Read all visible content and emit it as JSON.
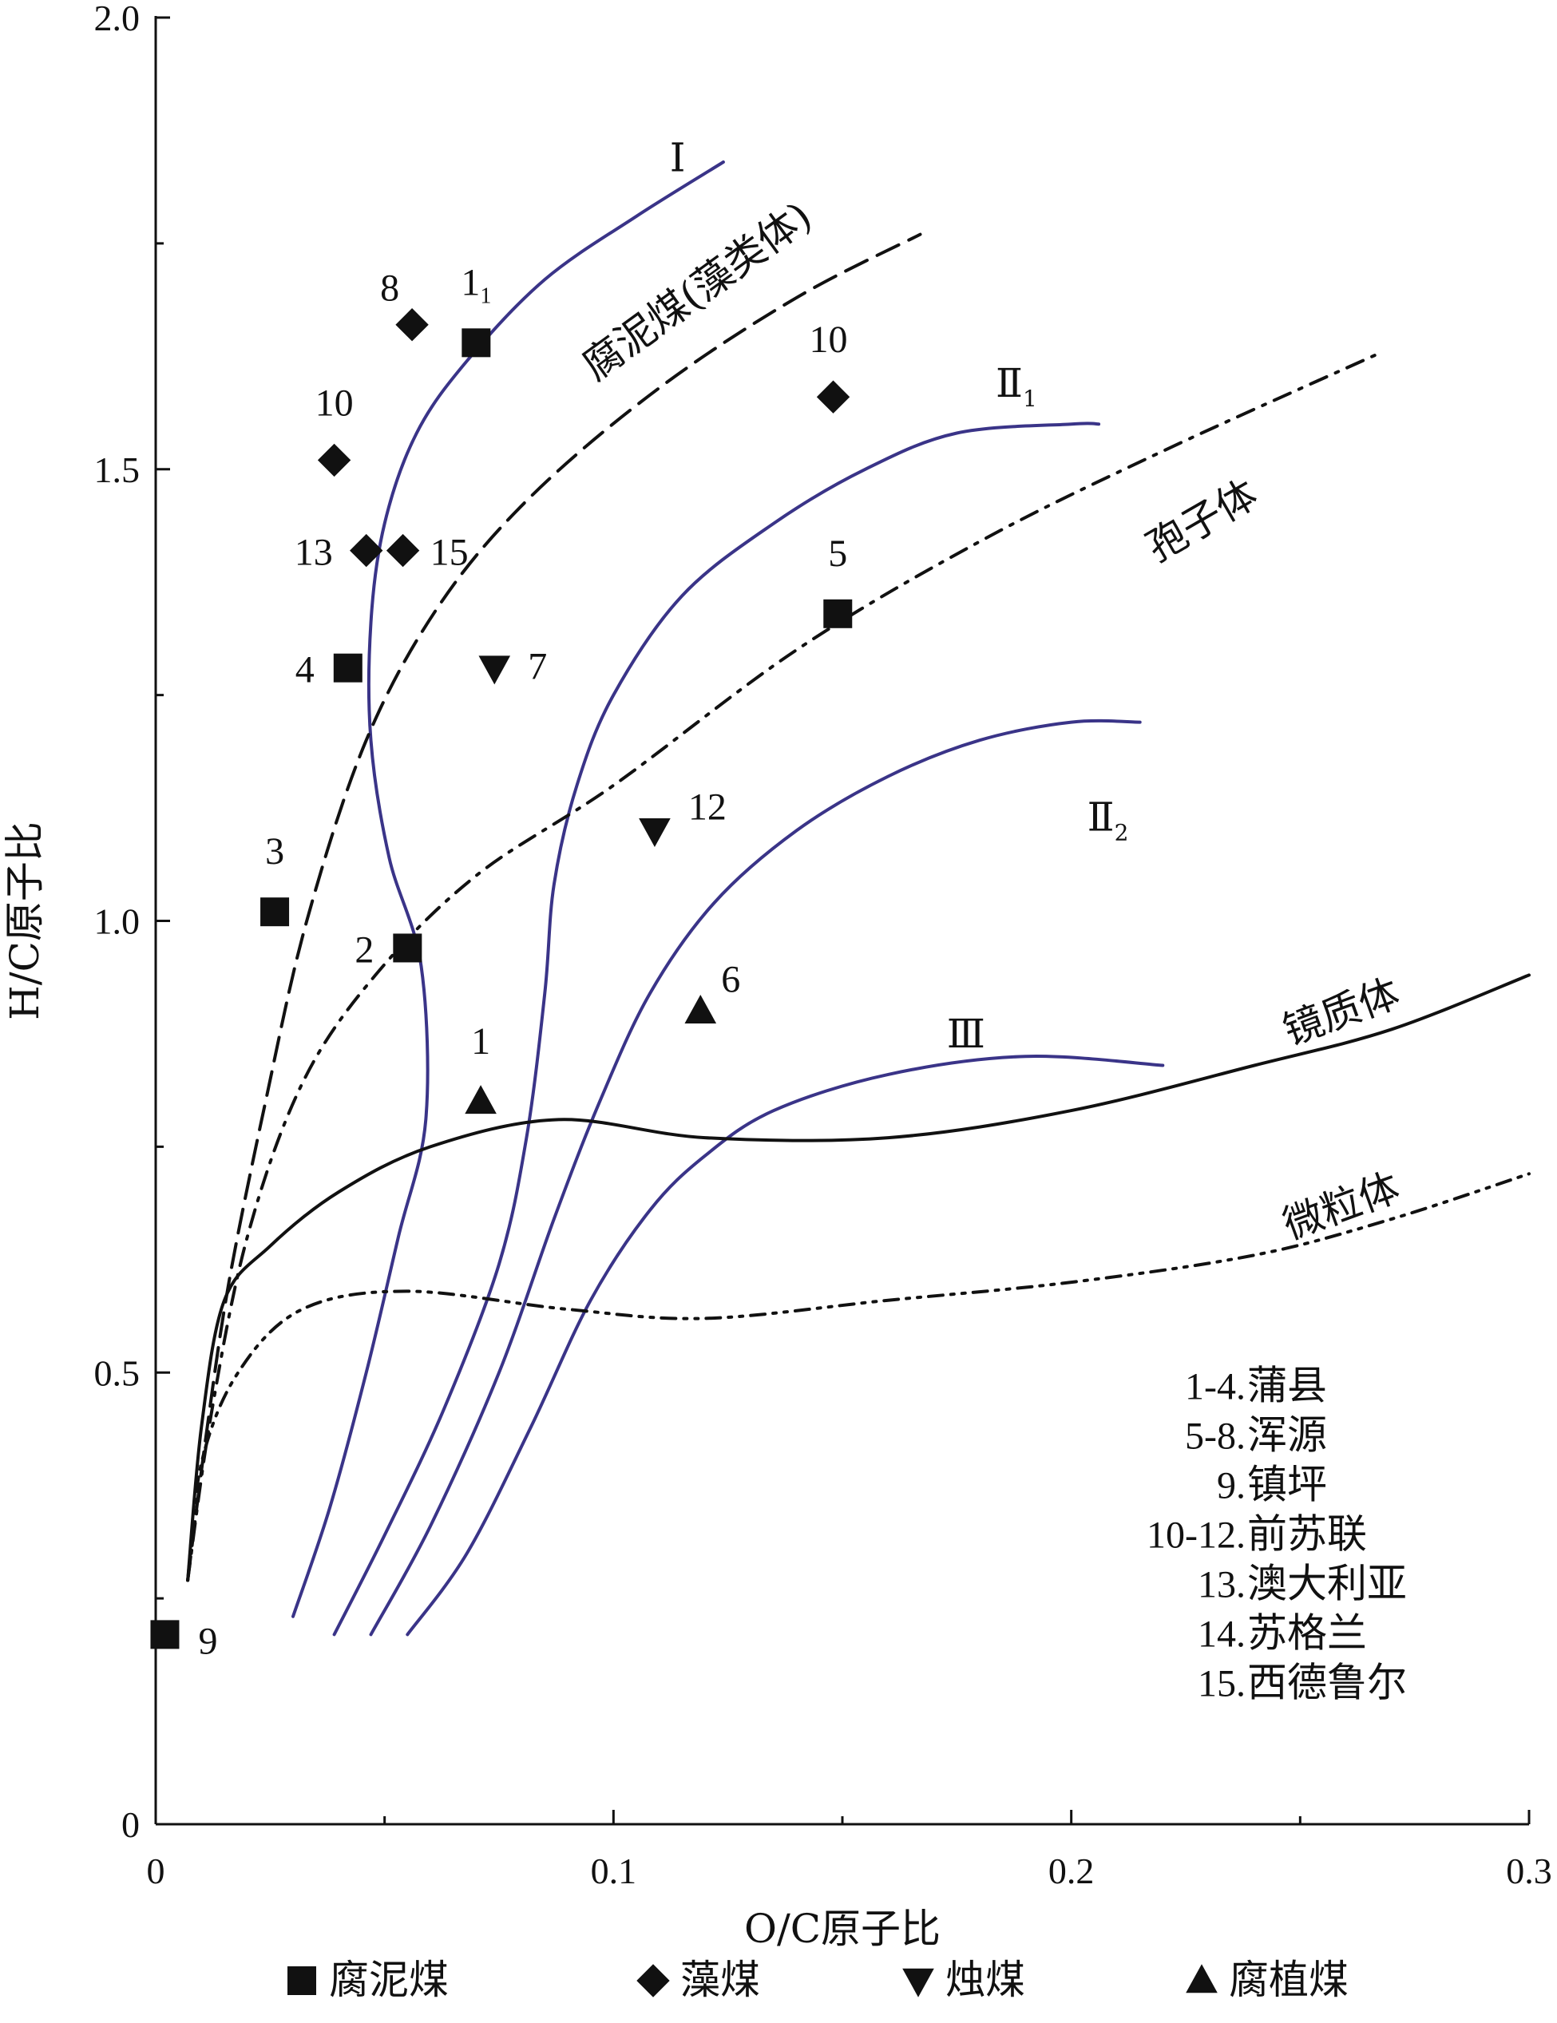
{
  "chart_data": {
    "type": "scatter",
    "xlabel": "O/C原子比",
    "ylabel": "H/C原子比",
    "xlim": [
      0,
      0.3
    ],
    "ylim": [
      0,
      2.0
    ],
    "xticks": [
      "0",
      "0.1",
      "0.2",
      "0.3"
    ],
    "yticks": [
      "0",
      "0.5",
      "1.0",
      "1.5",
      "2.0"
    ],
    "grid": false,
    "legend": {
      "placement": "bottom",
      "entries": [
        {
          "marker": "square",
          "label": "腐泥煤"
        },
        {
          "marker": "diamond",
          "label": "藻煤"
        },
        {
          "marker": "triangle-down",
          "label": "烛煤"
        },
        {
          "marker": "triangle-up",
          "label": "腐植煤"
        }
      ]
    },
    "points": [
      {
        "series": "腐泥煤",
        "marker": "square",
        "label": "1",
        "sub": "1",
        "x": 0.07,
        "y": 1.64
      },
      {
        "series": "腐泥煤",
        "marker": "square",
        "label": "2",
        "x": 0.055,
        "y": 0.97
      },
      {
        "series": "腐泥煤",
        "marker": "square",
        "label": "3",
        "x": 0.026,
        "y": 1.01
      },
      {
        "series": "腐泥煤",
        "marker": "square",
        "label": "4",
        "x": 0.042,
        "y": 1.28
      },
      {
        "series": "腐泥煤",
        "marker": "square",
        "label": "5",
        "x": 0.149,
        "y": 1.34
      },
      {
        "series": "腐泥煤",
        "marker": "square",
        "label": "9",
        "x": 0.002,
        "y": 0.21
      },
      {
        "series": "藻煤",
        "marker": "diamond",
        "label": "8",
        "x": 0.056,
        "y": 1.66
      },
      {
        "series": "藻煤",
        "marker": "diamond",
        "label": "10",
        "x": 0.039,
        "y": 1.51
      },
      {
        "series": "藻煤",
        "marker": "diamond",
        "label": "10",
        "x": 0.148,
        "y": 1.58
      },
      {
        "series": "藻煤",
        "marker": "diamond",
        "label": "13",
        "x": 0.046,
        "y": 1.41
      },
      {
        "series": "藻煤",
        "marker": "diamond",
        "label": "15",
        "x": 0.054,
        "y": 1.41
      },
      {
        "series": "烛煤",
        "marker": "triangle-down",
        "label": "7",
        "x": 0.074,
        "y": 1.28
      },
      {
        "series": "烛煤",
        "marker": "triangle-down",
        "label": "12",
        "x": 0.109,
        "y": 1.1
      },
      {
        "series": "腐植煤",
        "marker": "triangle-up",
        "label": "1",
        "x": 0.071,
        "y": 0.8
      },
      {
        "series": "腐植煤",
        "marker": "triangle-up",
        "label": "6",
        "x": 0.119,
        "y": 0.9
      }
    ],
    "curves": [
      {
        "name": "Ⅰ",
        "style": "solid",
        "color": "#3a3488",
        "points": [
          [
            0.03,
            0.23
          ],
          [
            0.038,
            0.35
          ],
          [
            0.046,
            0.5
          ],
          [
            0.053,
            0.65
          ],
          [
            0.059,
            0.78
          ],
          [
            0.058,
            0.95
          ],
          [
            0.051,
            1.07
          ],
          [
            0.047,
            1.2
          ],
          [
            0.047,
            1.33
          ],
          [
            0.05,
            1.44
          ],
          [
            0.057,
            1.54
          ],
          [
            0.068,
            1.62
          ],
          [
            0.085,
            1.71
          ],
          [
            0.105,
            1.78
          ],
          [
            0.124,
            1.84
          ]
        ]
      },
      {
        "name": "Ⅱ",
        "sub": "1",
        "style": "solid",
        "color": "#3a3488",
        "points": [
          [
            0.039,
            0.21
          ],
          [
            0.05,
            0.32
          ],
          [
            0.063,
            0.46
          ],
          [
            0.075,
            0.62
          ],
          [
            0.081,
            0.76
          ],
          [
            0.085,
            0.92
          ],
          [
            0.087,
            1.04
          ],
          [
            0.092,
            1.15
          ],
          [
            0.1,
            1.25
          ],
          [
            0.115,
            1.36
          ],
          [
            0.135,
            1.44
          ],
          [
            0.155,
            1.5
          ],
          [
            0.175,
            1.54
          ],
          [
            0.2,
            1.55
          ],
          [
            0.206,
            1.55
          ]
        ]
      },
      {
        "name": "Ⅱ",
        "sub": "2",
        "style": "solid",
        "color": "#3a3488",
        "points": [
          [
            0.047,
            0.21
          ],
          [
            0.06,
            0.33
          ],
          [
            0.075,
            0.5
          ],
          [
            0.087,
            0.67
          ],
          [
            0.097,
            0.8
          ],
          [
            0.108,
            0.92
          ],
          [
            0.122,
            1.02
          ],
          [
            0.14,
            1.1
          ],
          [
            0.16,
            1.16
          ],
          [
            0.18,
            1.2
          ],
          [
            0.2,
            1.22
          ],
          [
            0.215,
            1.22
          ]
        ]
      },
      {
        "name": "Ⅲ",
        "style": "solid",
        "color": "#3a3488",
        "points": [
          [
            0.055,
            0.21
          ],
          [
            0.068,
            0.3
          ],
          [
            0.082,
            0.44
          ],
          [
            0.095,
            0.58
          ],
          [
            0.108,
            0.68
          ],
          [
            0.12,
            0.74
          ],
          [
            0.135,
            0.79
          ],
          [
            0.16,
            0.83
          ],
          [
            0.19,
            0.85
          ],
          [
            0.22,
            0.84
          ]
        ]
      },
      {
        "name": "腐泥煤(藻类体)",
        "style": "dashed",
        "color": "#111111",
        "points": [
          [
            0.007,
            0.27
          ],
          [
            0.011,
            0.43
          ],
          [
            0.016,
            0.6
          ],
          [
            0.024,
            0.8
          ],
          [
            0.033,
            1.0
          ],
          [
            0.046,
            1.2
          ],
          [
            0.062,
            1.35
          ],
          [
            0.082,
            1.47
          ],
          [
            0.11,
            1.59
          ],
          [
            0.14,
            1.69
          ],
          [
            0.167,
            1.76
          ]
        ]
      },
      {
        "name": "孢子体",
        "style": "dashdot",
        "color": "#111111",
        "points": [
          [
            0.007,
            0.27
          ],
          [
            0.012,
            0.45
          ],
          [
            0.02,
            0.65
          ],
          [
            0.032,
            0.82
          ],
          [
            0.048,
            0.94
          ],
          [
            0.07,
            1.05
          ],
          [
            0.1,
            1.15
          ],
          [
            0.14,
            1.3
          ],
          [
            0.18,
            1.42
          ],
          [
            0.22,
            1.52
          ],
          [
            0.268,
            1.63
          ]
        ]
      },
      {
        "name": "镜质体",
        "style": "solid",
        "color": "#111111",
        "points": [
          [
            0.007,
            0.27
          ],
          [
            0.01,
            0.44
          ],
          [
            0.015,
            0.58
          ],
          [
            0.025,
            0.64
          ],
          [
            0.04,
            0.7
          ],
          [
            0.06,
            0.75
          ],
          [
            0.088,
            0.78
          ],
          [
            0.12,
            0.76
          ],
          [
            0.16,
            0.76
          ],
          [
            0.2,
            0.79
          ],
          [
            0.24,
            0.84
          ],
          [
            0.27,
            0.88
          ],
          [
            0.3,
            0.94
          ]
        ]
      },
      {
        "name": "微粒体",
        "style": "dashdotdot",
        "color": "#111111",
        "points": [
          [
            0.007,
            0.27
          ],
          [
            0.01,
            0.4
          ],
          [
            0.018,
            0.5
          ],
          [
            0.032,
            0.57
          ],
          [
            0.055,
            0.59
          ],
          [
            0.09,
            0.57
          ],
          [
            0.12,
            0.56
          ],
          [
            0.16,
            0.58
          ],
          [
            0.2,
            0.6
          ],
          [
            0.24,
            0.63
          ],
          [
            0.27,
            0.67
          ],
          [
            0.3,
            0.72
          ]
        ]
      }
    ],
    "annotations": [
      {
        "text": "Ⅰ",
        "x": 0.114,
        "y": 1.83
      },
      {
        "text": "腐泥煤(藻类体)",
        "x": 0.12,
        "y": 1.685,
        "rotate": -36
      },
      {
        "text": "Ⅱ",
        "sub": "1",
        "x": 0.188,
        "y": 1.58
      },
      {
        "text": "孢子体",
        "x": 0.23,
        "y": 1.43,
        "rotate": -30
      },
      {
        "text": "Ⅱ",
        "sub": "2",
        "x": 0.208,
        "y": 1.1
      },
      {
        "text": "镜质体",
        "x": 0.26,
        "y": 0.885,
        "rotate": -20
      },
      {
        "text": "Ⅲ",
        "x": 0.177,
        "y": 0.86
      },
      {
        "text": "微粒体",
        "x": 0.26,
        "y": 0.67,
        "rotate": -20
      }
    ],
    "notes": [
      "1-4.蒲县",
      "5-8.浑源",
      "9.镇坪",
      "10-12.前苏联",
      "13.澳大利亚",
      "14.苏格兰",
      "15.西德鲁尔"
    ]
  }
}
